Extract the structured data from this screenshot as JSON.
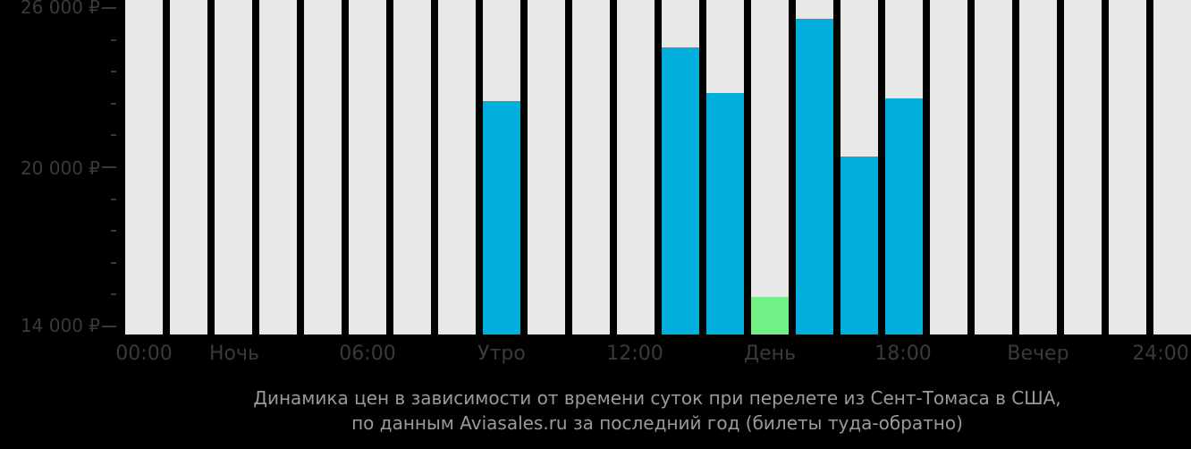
{
  "chart_data": {
    "type": "bar",
    "title": "Динамика цен в зависимости от времени суток при перелете из Сент-Томаса в США, по данным Aviasales.ru за последний год (билеты туда-обратно)",
    "xlabel": "",
    "ylabel": "",
    "ylim": [
      13700,
      26000
    ],
    "grid": false,
    "legend": null,
    "categories": [
      "00",
      "01",
      "02",
      "03",
      "04",
      "05",
      "06",
      "07",
      "08",
      "09",
      "10",
      "11",
      "12",
      "13",
      "14",
      "15",
      "16",
      "17",
      "18",
      "19",
      "20",
      "21",
      "22",
      "23"
    ],
    "values": [
      null,
      null,
      null,
      null,
      null,
      null,
      null,
      null,
      22500,
      null,
      null,
      null,
      24500,
      22800,
      15100,
      25600,
      20400,
      22600,
      null,
      null,
      null,
      null,
      null,
      null
    ],
    "highlight": {
      "index": 14,
      "label": "min",
      "color": "#72f087"
    },
    "y_ticks": [
      {
        "value": 26000,
        "label": "26 000 ₽"
      },
      {
        "value": 20000,
        "label": "20 000 ₽"
      },
      {
        "value": 14000,
        "label": "14 000 ₽"
      }
    ],
    "x_tick_labels": [
      {
        "label": "00:00",
        "pos": 0
      },
      {
        "label": "Ночь",
        "pos": 2.5
      },
      {
        "label": "06:00",
        "pos": 6
      },
      {
        "label": "Утро",
        "pos": 8.5
      },
      {
        "label": "12:00",
        "pos": 12
      },
      {
        "label": "День",
        "pos": 14.5
      },
      {
        "label": "18:00",
        "pos": 18
      },
      {
        "label": "Вечер",
        "pos": 20.5
      },
      {
        "label": "24:00",
        "pos": 24
      }
    ]
  },
  "colors": {
    "background": "#000000",
    "bar_empty": "#e8e8e8",
    "bar_value": "#00afdb",
    "bar_min": "#72f087",
    "axis_text": "#3a3a3a",
    "caption_text": "#9a9a9a"
  },
  "axis": {
    "y_labels": [
      "26 000 ₽",
      "20 000 ₽",
      "14 000 ₽"
    ],
    "x_labels": [
      "00:00",
      "Ночь",
      "06:00",
      "Утро",
      "12:00",
      "День",
      "18:00",
      "Вечер",
      "24:00"
    ]
  },
  "caption": {
    "line1": "Динамика цен в зависимости от времени суток при перелете из Сент-Томаса в США,",
    "line2": "по данным Aviasales.ru за последний год (билеты туда-обратно)"
  }
}
